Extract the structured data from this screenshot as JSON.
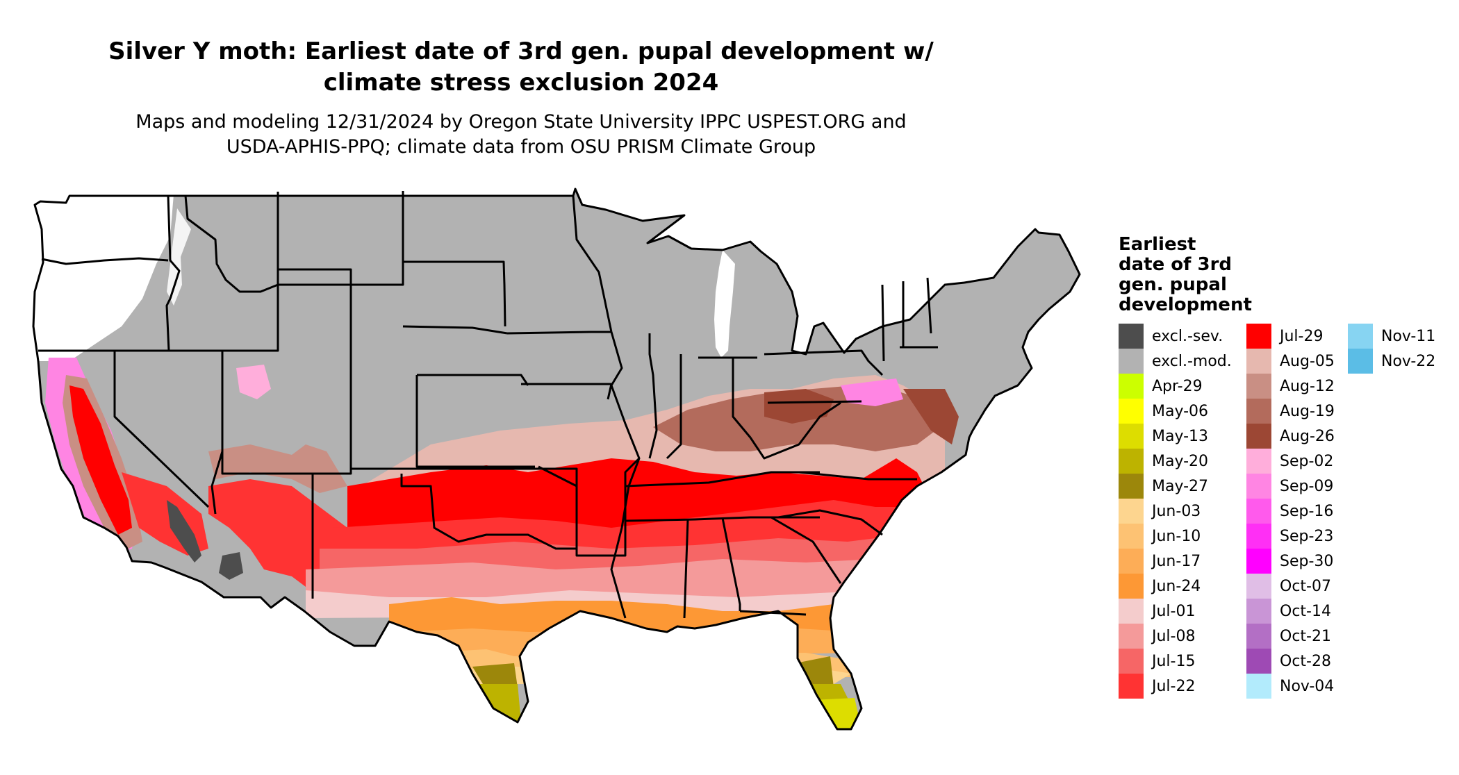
{
  "title": {
    "line1": "Silver Y moth: Earliest date of 3rd gen. pupal development w/",
    "line2": "climate stress exclusion 2024"
  },
  "subtitle": {
    "line1": "Maps and modeling 12/31/2024 by Oregon State University IPPC USPEST.ORG and",
    "line2": "USDA-APHIS-PPQ; climate data from OSU PRISM Climate Group"
  },
  "legend": {
    "title_lines": [
      "Earliest",
      "date of 3rd",
      "gen. pupal",
      "development"
    ],
    "columns": [
      [
        {
          "label": "excl.-sev.",
          "color": "#4d4d4d"
        },
        {
          "label": "excl.-mod.",
          "color": "#b2b2b2"
        },
        {
          "label": "Apr-29",
          "color": "#ccff00"
        },
        {
          "label": "May-06",
          "color": "#ffff00"
        },
        {
          "label": "May-13",
          "color": "#dddd00"
        },
        {
          "label": "May-20",
          "color": "#bdb300"
        },
        {
          "label": "May-27",
          "color": "#9c870b"
        },
        {
          "label": "Jun-03",
          "color": "#fdd58f"
        },
        {
          "label": "Jun-10",
          "color": "#fdc273"
        },
        {
          "label": "Jun-17",
          "color": "#fdad57"
        },
        {
          "label": "Jun-24",
          "color": "#fd9835"
        },
        {
          "label": "Jul-01",
          "color": "#f4cccc"
        },
        {
          "label": "Jul-08",
          "color": "#f49a9a"
        },
        {
          "label": "Jul-15",
          "color": "#f66666"
        },
        {
          "label": "Jul-22",
          "color": "#ff3333"
        }
      ],
      [
        {
          "label": "Jul-29",
          "color": "#ff0000"
        },
        {
          "label": "Aug-05",
          "color": "#e6b8af"
        },
        {
          "label": "Aug-12",
          "color": "#c98f84"
        },
        {
          "label": "Aug-19",
          "color": "#b36b5c"
        },
        {
          "label": "Aug-26",
          "color": "#9c4734"
        },
        {
          "label": "Sep-02",
          "color": "#ffaedb"
        },
        {
          "label": "Sep-09",
          "color": "#ff85e3"
        },
        {
          "label": "Sep-16",
          "color": "#ff5aec"
        },
        {
          "label": "Sep-23",
          "color": "#ff2ff5"
        },
        {
          "label": "Sep-30",
          "color": "#ff00ff"
        },
        {
          "label": "Oct-07",
          "color": "#e0bee6"
        },
        {
          "label": "Oct-14",
          "color": "#c995d6"
        },
        {
          "label": "Oct-21",
          "color": "#b36fc5"
        },
        {
          "label": "Oct-28",
          "color": "#9e4ab4"
        },
        {
          "label": "Nov-04",
          "color": "#b2ebfc"
        }
      ],
      [
        {
          "label": "Nov-11",
          "color": "#87d4f2"
        },
        {
          "label": "Nov-22",
          "color": "#5bbde6"
        }
      ]
    ]
  },
  "map": {
    "colors": {
      "land_excluded": "#b2b2b2",
      "no_data": "#ffffff",
      "border": "#000000"
    }
  }
}
